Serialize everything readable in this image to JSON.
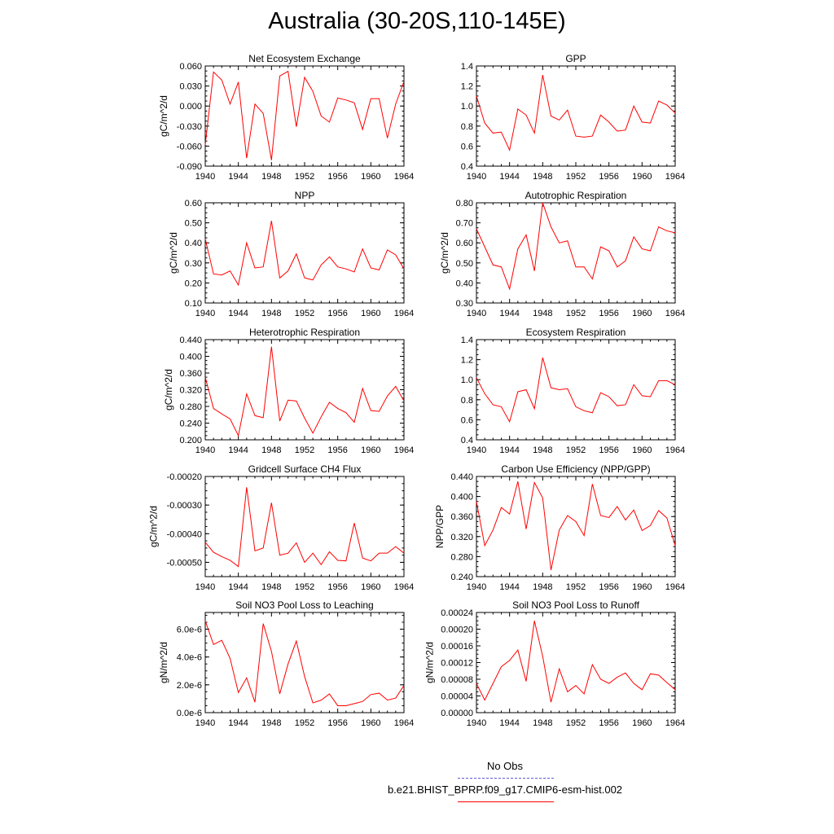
{
  "title": "Australia (30-20S,110-145E)",
  "legend": {
    "obs_label": "No Obs",
    "obs_color": "#5b5bd6",
    "model_label": "b.e21.BHIST_BPRP.f09_g17.CMIP6-esm-hist.002",
    "model_color": "#ff0000"
  },
  "chart_data": [
    {
      "type": "line",
      "title": "Net Ecosystem Exchange",
      "ylabel": "gC/m^2/d",
      "ylim": [
        -0.09,
        0.06
      ],
      "yticks": [
        -0.09,
        -0.06,
        -0.03,
        0.0,
        0.03,
        0.06
      ],
      "yticklabels": [
        "-0.090",
        "-0.060",
        "-0.030",
        "0.000",
        "0.030",
        "0.060"
      ],
      "xlim": [
        1940,
        1964
      ],
      "xticks": [
        1940,
        1944,
        1948,
        1952,
        1956,
        1960,
        1964
      ],
      "series": [
        {
          "color": "#ff0000",
          "x": [
            1940,
            1941,
            1942,
            1943,
            1944,
            1945,
            1946,
            1947,
            1948,
            1949,
            1950,
            1951,
            1952,
            1953,
            1954,
            1955,
            1956,
            1957,
            1958,
            1959,
            1960,
            1961,
            1962,
            1963,
            1964
          ],
          "y": [
            -0.058,
            0.051,
            0.039,
            0.003,
            0.036,
            -0.078,
            0.003,
            -0.011,
            -0.081,
            0.045,
            0.052,
            -0.031,
            0.043,
            0.022,
            -0.015,
            -0.024,
            0.012,
            0.009,
            0.005,
            -0.035,
            0.011,
            0.011,
            -0.048,
            0.003,
            0.037
          ]
        }
      ]
    },
    {
      "type": "line",
      "title": "GPP",
      "ylabel": "",
      "ylim": [
        0.4,
        1.4
      ],
      "yticks": [
        0.4,
        0.6,
        0.8,
        1.0,
        1.2,
        1.4
      ],
      "yticklabels": [
        "0.4",
        "0.6",
        "0.8",
        "1.0",
        "1.2",
        "1.4"
      ],
      "xlim": [
        1940,
        1964
      ],
      "xticks": [
        1940,
        1944,
        1948,
        1952,
        1956,
        1960,
        1964
      ],
      "series": [
        {
          "color": "#ff0000",
          "x": [
            1940,
            1941,
            1942,
            1943,
            1944,
            1945,
            1946,
            1947,
            1948,
            1949,
            1950,
            1951,
            1952,
            1953,
            1954,
            1955,
            1956,
            1957,
            1958,
            1959,
            1960,
            1961,
            1962,
            1963,
            1964
          ],
          "y": [
            1.1,
            0.83,
            0.73,
            0.74,
            0.56,
            0.97,
            0.91,
            0.73,
            1.31,
            0.9,
            0.86,
            0.96,
            0.7,
            0.69,
            0.7,
            0.91,
            0.84,
            0.75,
            0.76,
            1.0,
            0.84,
            0.83,
            1.05,
            1.01,
            0.93
          ]
        }
      ]
    },
    {
      "type": "line",
      "title": "NPP",
      "ylabel": "gC/m^2/d",
      "ylim": [
        0.1,
        0.6
      ],
      "yticks": [
        0.1,
        0.2,
        0.3,
        0.4,
        0.5,
        0.6
      ],
      "yticklabels": [
        "0.10",
        "0.20",
        "0.30",
        "0.40",
        "0.50",
        "0.60"
      ],
      "xlim": [
        1940,
        1964
      ],
      "xticks": [
        1940,
        1944,
        1948,
        1952,
        1956,
        1960,
        1964
      ],
      "series": [
        {
          "color": "#ff0000",
          "x": [
            1940,
            1941,
            1942,
            1943,
            1944,
            1945,
            1946,
            1947,
            1948,
            1949,
            1950,
            1951,
            1952,
            1953,
            1954,
            1955,
            1956,
            1957,
            1958,
            1959,
            1960,
            1961,
            1962,
            1963,
            1964
          ],
          "y": [
            0.42,
            0.245,
            0.24,
            0.26,
            0.19,
            0.4,
            0.275,
            0.28,
            0.51,
            0.225,
            0.26,
            0.345,
            0.225,
            0.215,
            0.29,
            0.33,
            0.28,
            0.27,
            0.255,
            0.37,
            0.275,
            0.265,
            0.365,
            0.34,
            0.27
          ]
        }
      ]
    },
    {
      "type": "line",
      "title": "Autotrophic Respiration",
      "ylabel": "gC/m^2/d",
      "ylim": [
        0.3,
        0.8
      ],
      "yticks": [
        0.3,
        0.4,
        0.5,
        0.6,
        0.7,
        0.8
      ],
      "yticklabels": [
        "0.30",
        "0.40",
        "0.50",
        "0.60",
        "0.70",
        "0.80"
      ],
      "xlim": [
        1940,
        1964
      ],
      "xticks": [
        1940,
        1944,
        1948,
        1952,
        1956,
        1960,
        1964
      ],
      "series": [
        {
          "color": "#ff0000",
          "x": [
            1940,
            1941,
            1942,
            1943,
            1944,
            1945,
            1946,
            1947,
            1948,
            1949,
            1950,
            1951,
            1952,
            1953,
            1954,
            1955,
            1956,
            1957,
            1958,
            1959,
            1960,
            1961,
            1962,
            1963,
            1964
          ],
          "y": [
            0.67,
            0.58,
            0.49,
            0.48,
            0.37,
            0.57,
            0.64,
            0.46,
            0.8,
            0.68,
            0.6,
            0.61,
            0.48,
            0.48,
            0.42,
            0.58,
            0.56,
            0.48,
            0.51,
            0.63,
            0.57,
            0.56,
            0.68,
            0.66,
            0.65
          ]
        }
      ]
    },
    {
      "type": "line",
      "title": "Heterotrophic Respiration",
      "ylabel": "gC/m^2/d",
      "ylim": [
        0.2,
        0.44
      ],
      "yticks": [
        0.2,
        0.24,
        0.28,
        0.32,
        0.36,
        0.4,
        0.44
      ],
      "yticklabels": [
        "0.200",
        "0.240",
        "0.280",
        "0.320",
        "0.360",
        "0.400",
        "0.440"
      ],
      "xlim": [
        1940,
        1964
      ],
      "xticks": [
        1940,
        1944,
        1948,
        1952,
        1956,
        1960,
        1964
      ],
      "series": [
        {
          "color": "#ff0000",
          "x": [
            1940,
            1941,
            1942,
            1943,
            1944,
            1945,
            1946,
            1947,
            1948,
            1949,
            1950,
            1951,
            1952,
            1953,
            1954,
            1955,
            1956,
            1957,
            1958,
            1959,
            1960,
            1961,
            1962,
            1963,
            1964
          ],
          "y": [
            0.35,
            0.275,
            0.262,
            0.25,
            0.21,
            0.31,
            0.258,
            0.253,
            0.423,
            0.245,
            0.295,
            0.293,
            0.252,
            0.216,
            0.255,
            0.29,
            0.275,
            0.265,
            0.242,
            0.323,
            0.27,
            0.268,
            0.305,
            0.328,
            0.293
          ]
        }
      ]
    },
    {
      "type": "line",
      "title": "Ecosystem Respiration",
      "ylabel": "",
      "ylim": [
        0.4,
        1.4
      ],
      "yticks": [
        0.4,
        0.6,
        0.8,
        1.0,
        1.2,
        1.4
      ],
      "yticklabels": [
        "0.4",
        "0.6",
        "0.8",
        "1.0",
        "1.2",
        "1.4"
      ],
      "xlim": [
        1940,
        1964
      ],
      "xticks": [
        1940,
        1944,
        1948,
        1952,
        1956,
        1960,
        1964
      ],
      "series": [
        {
          "color": "#ff0000",
          "x": [
            1940,
            1941,
            1942,
            1943,
            1944,
            1945,
            1946,
            1947,
            1948,
            1949,
            1950,
            1951,
            1952,
            1953,
            1954,
            1955,
            1956,
            1957,
            1958,
            1959,
            1960,
            1961,
            1962,
            1963,
            1964
          ],
          "y": [
            1.02,
            0.86,
            0.75,
            0.73,
            0.58,
            0.88,
            0.9,
            0.71,
            1.22,
            0.92,
            0.9,
            0.91,
            0.73,
            0.69,
            0.67,
            0.87,
            0.83,
            0.74,
            0.75,
            0.95,
            0.84,
            0.83,
            0.99,
            0.99,
            0.95
          ]
        }
      ]
    },
    {
      "type": "line",
      "title": "Gridcell Surface CH4 Flux",
      "ylabel": "gC/m^2/d",
      "ylim": [
        -0.00055,
        -0.0002
      ],
      "yticks": [
        -0.0005,
        -0.0004,
        -0.0003,
        -0.0002
      ],
      "yticklabels": [
        "-0.00050",
        "-0.00040",
        "-0.00030",
        "-0.00020"
      ],
      "xlim": [
        1940,
        1964
      ],
      "xticks": [
        1940,
        1944,
        1948,
        1952,
        1956,
        1960,
        1964
      ],
      "series": [
        {
          "color": "#ff0000",
          "x": [
            1940,
            1941,
            1942,
            1943,
            1944,
            1945,
            1946,
            1947,
            1948,
            1949,
            1950,
            1951,
            1952,
            1953,
            1954,
            1955,
            1956,
            1957,
            1958,
            1959,
            1960,
            1961,
            1962,
            1963,
            1964
          ],
          "y": [
            -0.00043,
            -0.000465,
            -0.00048,
            -0.000493,
            -0.000515,
            -0.000238,
            -0.00046,
            -0.00045,
            -0.000292,
            -0.000475,
            -0.000468,
            -0.000432,
            -0.0005,
            -0.000468,
            -0.000508,
            -0.000463,
            -0.000493,
            -0.000495,
            -0.000363,
            -0.000485,
            -0.000495,
            -0.000468,
            -0.000468,
            -0.000445,
            -0.000468
          ]
        }
      ]
    },
    {
      "type": "line",
      "title": "Carbon Use Efficiency (NPP/GPP)",
      "ylabel": "NPP/GPP",
      "ylim": [
        0.24,
        0.44
      ],
      "yticks": [
        0.24,
        0.28,
        0.32,
        0.36,
        0.4,
        0.44
      ],
      "yticklabels": [
        "0.240",
        "0.280",
        "0.320",
        "0.360",
        "0.400",
        "0.440"
      ],
      "xlim": [
        1940,
        1964
      ],
      "xticks": [
        1940,
        1944,
        1948,
        1952,
        1956,
        1960,
        1964
      ],
      "series": [
        {
          "color": "#ff0000",
          "x": [
            1940,
            1941,
            1942,
            1943,
            1944,
            1945,
            1946,
            1947,
            1948,
            1949,
            1950,
            1951,
            1952,
            1953,
            1954,
            1955,
            1956,
            1957,
            1958,
            1959,
            1960,
            1961,
            1962,
            1963,
            1964
          ],
          "y": [
            0.39,
            0.302,
            0.333,
            0.378,
            0.365,
            0.43,
            0.335,
            0.428,
            0.397,
            0.253,
            0.333,
            0.362,
            0.35,
            0.322,
            0.425,
            0.362,
            0.358,
            0.38,
            0.353,
            0.373,
            0.332,
            0.342,
            0.372,
            0.357,
            0.302
          ]
        }
      ]
    },
    {
      "type": "line",
      "title": "Soil NO3 Pool Loss to Leaching",
      "ylabel": "gN/m^2/d",
      "ylim": [
        0.0,
        7.2e-06
      ],
      "yticks": [
        0.0,
        2e-06,
        4e-06,
        6e-06
      ],
      "yticklabels": [
        "0.0e-6",
        "2.0e-6",
        "4.0e-6",
        "6.0e-6"
      ],
      "xlim": [
        1940,
        1964
      ],
      "xticks": [
        1940,
        1944,
        1948,
        1952,
        1956,
        1960,
        1964
      ],
      "series": [
        {
          "color": "#ff0000",
          "x": [
            1940,
            1941,
            1942,
            1943,
            1944,
            1945,
            1946,
            1947,
            1948,
            1949,
            1950,
            1951,
            1952,
            1953,
            1954,
            1955,
            1956,
            1957,
            1958,
            1959,
            1960,
            1961,
            1962,
            1963,
            1964
          ],
          "y": [
            6.6e-06,
            4.9e-06,
            5.2e-06,
            3.9e-06,
            1.45e-06,
            2.5e-06,
            7.5e-07,
            6.4e-06,
            4.4e-06,
            1.35e-06,
            3.5e-06,
            5.15e-06,
            2.6e-06,
            7e-07,
            9e-07,
            1.35e-06,
            5e-07,
            5e-07,
            6.5e-07,
            8e-07,
            1.3e-06,
            1.4e-06,
            9e-07,
            1.05e-06,
            1.95e-06
          ]
        }
      ]
    },
    {
      "type": "line",
      "title": "Soil NO3 Pool Loss to Runoff",
      "ylabel": "gN/m^2/d",
      "ylim": [
        0.0,
        0.00024
      ],
      "yticks": [
        0.0,
        4e-05,
        8e-05,
        0.00012,
        0.00016,
        0.0002,
        0.00024
      ],
      "yticklabels": [
        "0.00000",
        "0.00004",
        "0.00008",
        "0.00012",
        "0.00016",
        "0.00020",
        "0.00024"
      ],
      "xlim": [
        1940,
        1964
      ],
      "xticks": [
        1940,
        1944,
        1948,
        1952,
        1956,
        1960,
        1964
      ],
      "series": [
        {
          "color": "#ff0000",
          "x": [
            1940,
            1941,
            1942,
            1943,
            1944,
            1945,
            1946,
            1947,
            1948,
            1949,
            1950,
            1951,
            1952,
            1953,
            1954,
            1955,
            1956,
            1957,
            1958,
            1959,
            1960,
            1961,
            1962,
            1963,
            1964
          ],
          "y": [
            7e-05,
            3e-05,
            7e-05,
            0.00011,
            0.000125,
            0.00015,
            7.5e-05,
            0.00022,
            0.000135,
            2.5e-05,
            0.000105,
            5e-05,
            6.5e-05,
            4.5e-05,
            0.000115,
            8e-05,
            7e-05,
            8.5e-05,
            9.5e-05,
            7e-05,
            5.5e-05,
            9.3e-05,
            9e-05,
            7.2e-05,
            5.5e-05
          ]
        }
      ]
    }
  ]
}
